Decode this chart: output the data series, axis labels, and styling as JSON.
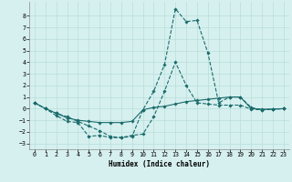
{
  "xlabel": "Humidex (Indice chaleur)",
  "background_color": "#d6f0ef",
  "grid_color": "#b8deda",
  "line_color": "#1a6b6b",
  "xlim": [
    -0.5,
    23.5
  ],
  "ylim": [
    -3.5,
    9.2
  ],
  "yticks": [
    -3,
    -2,
    -1,
    0,
    1,
    2,
    3,
    4,
    5,
    6,
    7,
    8
  ],
  "xticks": [
    0,
    1,
    2,
    3,
    4,
    5,
    6,
    7,
    8,
    9,
    10,
    11,
    12,
    13,
    14,
    15,
    16,
    17,
    18,
    19,
    20,
    21,
    22,
    23
  ],
  "line1_x": [
    0,
    1,
    2,
    3,
    4,
    5,
    6,
    7,
    8,
    9,
    10,
    11,
    12,
    13,
    14,
    15,
    16,
    17,
    18,
    19,
    20,
    21,
    22,
    23
  ],
  "line1_y": [
    0.5,
    0.0,
    -0.6,
    -1.1,
    -1.2,
    -2.4,
    -2.3,
    -2.5,
    -2.5,
    -2.4,
    -0.1,
    1.5,
    3.8,
    8.6,
    7.5,
    7.6,
    4.8,
    0.5,
    1.0,
    1.0,
    0.1,
    -0.1,
    -0.05,
    0.0
  ],
  "line2_x": [
    0,
    1,
    2,
    3,
    4,
    5,
    6,
    7,
    8,
    9,
    10,
    11,
    12,
    13,
    14,
    15,
    16,
    17,
    18,
    19,
    20,
    21,
    22,
    23
  ],
  "line2_y": [
    0.5,
    0.0,
    -0.4,
    -0.8,
    -1.0,
    -1.1,
    -1.2,
    -1.2,
    -1.2,
    -1.1,
    -0.1,
    0.1,
    0.2,
    0.4,
    0.6,
    0.7,
    0.8,
    0.9,
    1.0,
    1.0,
    0.0,
    -0.05,
    -0.05,
    0.0
  ],
  "line3_x": [
    0,
    1,
    2,
    3,
    4,
    5,
    6,
    7,
    8,
    9,
    10,
    11,
    12,
    13,
    14,
    15,
    16,
    17,
    18,
    19,
    20,
    21,
    22,
    23
  ],
  "line3_y": [
    0.5,
    0.0,
    -0.4,
    -0.7,
    -1.1,
    -1.5,
    -1.9,
    -2.4,
    -2.5,
    -2.3,
    -2.2,
    -0.7,
    1.5,
    4.0,
    2.0,
    0.5,
    0.4,
    0.3,
    0.3,
    0.3,
    -0.05,
    -0.1,
    -0.05,
    0.0
  ]
}
